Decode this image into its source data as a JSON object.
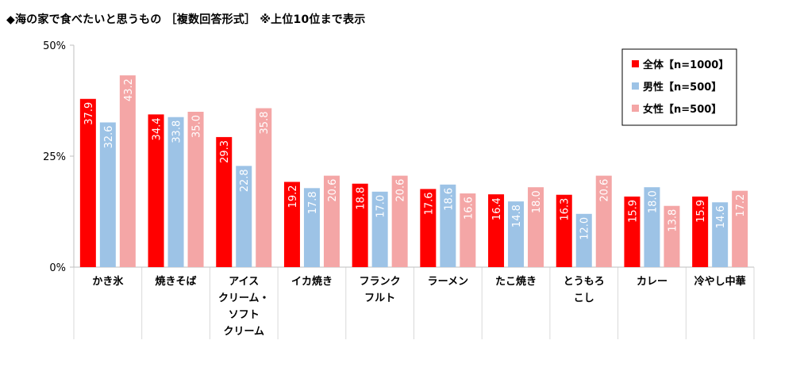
{
  "title": "◆海の家で食べたいと思うもの ［複数回答形式］ ※上位10位まで表示",
  "chart_data": {
    "type": "bar",
    "title": "◆海の家で食べたいと思うもの ［複数回答形式］ ※上位10位まで表示",
    "xlabel": "",
    "ylabel": "",
    "ylim": [
      0,
      50
    ],
    "y_ticks": [
      "0%",
      "25%",
      "50%"
    ],
    "y_tick_values": [
      0,
      25,
      50
    ],
    "grid": false,
    "legend_position": "top-right",
    "categories": [
      [
        "かき氷"
      ],
      [
        "焼きそば"
      ],
      [
        "アイス",
        "クリーム・",
        "ソフト",
        "クリーム"
      ],
      [
        "イカ焼き"
      ],
      [
        "フランク",
        "フルト"
      ],
      [
        "ラーメン"
      ],
      [
        "たこ焼き"
      ],
      [
        "とうもろ",
        "こし"
      ],
      [
        "カレー"
      ],
      [
        "冷やし中華"
      ]
    ],
    "series": [
      {
        "name": "全体【n=1000】",
        "color": "#ff0000",
        "values": [
          37.9,
          34.4,
          29.3,
          19.2,
          18.8,
          17.6,
          16.4,
          16.3,
          15.9,
          15.9
        ],
        "labels": [
          "37.9",
          "34.4",
          "29.3",
          "19.2",
          "18.8",
          "17.6",
          "16.4",
          "16.3",
          "15.9",
          "15.9"
        ]
      },
      {
        "name": "男性【n=500】",
        "color": "#9dc3e6",
        "values": [
          32.6,
          33.8,
          22.8,
          17.8,
          17.0,
          18.6,
          14.8,
          12.0,
          18.0,
          14.6
        ],
        "labels": [
          "32.6",
          "33.8",
          "22.8",
          "17.8",
          "17.0",
          "18.6",
          "14.8",
          "12.0",
          "18.0",
          "14.6"
        ]
      },
      {
        "name": "女性【n=500】",
        "color": "#f4a6a6",
        "values": [
          43.2,
          35.0,
          35.8,
          20.6,
          20.6,
          16.6,
          18.0,
          20.6,
          13.8,
          17.2
        ],
        "labels": [
          "43.2",
          "35.0",
          "35.8",
          "20.6",
          "20.6",
          "16.6",
          "18.0",
          "20.6",
          "13.8",
          "17.2"
        ]
      }
    ]
  }
}
